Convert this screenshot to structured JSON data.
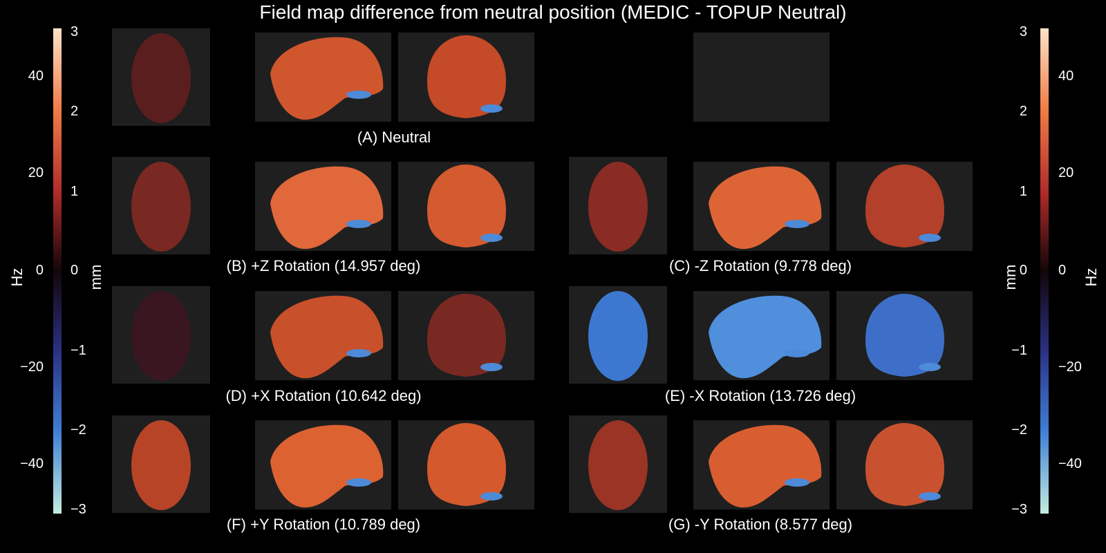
{
  "title": "Field map difference from neutral position (MEDIC - TOPUP Neutral)",
  "captions": {
    "A": "(A) Neutral",
    "B": "(B) +Z Rotation (14.957 deg)",
    "C": "(C) -Z Rotation (9.778 deg)",
    "D": "(D) +X Rotation (10.642 deg)",
    "E": "(E) -X Rotation (13.726 deg)",
    "F": "(F) +Y Rotation (10.789 deg)",
    "G": "(G) -Y Rotation (8.577 deg)"
  },
  "colorbars": {
    "hz_label": "Hz",
    "mm_label": "mm",
    "hz_ticks": [
      "40",
      "20",
      "0",
      "−20",
      "−40"
    ],
    "mm_ticks": [
      "3",
      "2",
      "1",
      "0",
      "−1",
      "−2",
      "−3"
    ],
    "colors": {
      "high": "#fde3c8",
      "upper": "#f07a45",
      "mid_upper": "#b02a2a",
      "zero": "#120608",
      "mid_lower": "#2a2f80",
      "lower": "#3f7fd6",
      "low": "#c4ecdf"
    }
  },
  "panel_colors": {
    "background": "#1f1f1f",
    "A": {
      "axial": "#5a1e1e",
      "sagittal": "#d0562e",
      "coronal": "#c44a28"
    },
    "B": {
      "axial": "#7a2822",
      "sagittal": "#e0683a",
      "coronal": "#d45a30"
    },
    "C": {
      "axial": "#8a2c24",
      "sagittal": "#dd6535",
      "coronal": "#b2402a"
    },
    "D": {
      "axial": "#3a1620",
      "sagittal": "#c8502a",
      "coronal": "#7a2822"
    },
    "E": {
      "axial": "#3d78d0",
      "sagittal": "#4f8fdc",
      "coronal": "#3e6fc8"
    },
    "F": {
      "axial": "#b84428",
      "sagittal": "#dd6232",
      "coronal": "#d45a2e"
    },
    "G": {
      "axial": "#9a3424",
      "sagittal": "#d85e32",
      "coronal": "#c85230"
    }
  }
}
